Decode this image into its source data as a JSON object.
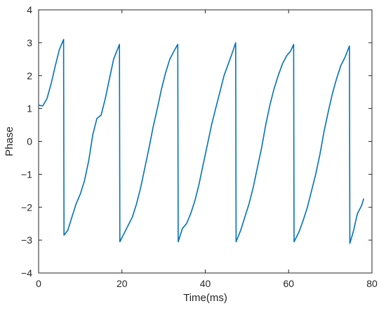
{
  "chart_data": {
    "type": "line",
    "title": "",
    "xlabel": "Time(ms)",
    "ylabel": "Phase",
    "xlim": [
      0,
      80
    ],
    "ylim": [
      -4,
      4
    ],
    "xticks": [
      0,
      20,
      40,
      60,
      80
    ],
    "yticks": [
      -4,
      -3,
      -2,
      -1,
      0,
      1,
      2,
      3,
      4
    ],
    "grid": false,
    "legend": "none",
    "line_color": "#0072BD",
    "axis_color": "#262626",
    "series": [
      {
        "x": [
          0,
          1,
          2,
          3,
          4,
          5,
          6,
          6.1,
          7,
          8,
          9,
          10,
          11,
          12,
          13,
          14,
          15,
          16,
          17,
          18,
          19.4,
          19.5,
          20.5,
          21.5,
          22.5,
          23.5,
          24.5,
          25.5,
          26.5,
          27.5,
          28.5,
          29.5,
          30.5,
          31.5,
          32.5,
          33.4,
          33.5,
          34.5,
          35.5,
          36.5,
          37.5,
          38.5,
          39.5,
          40.5,
          41.5,
          42.5,
          43.5,
          44.5,
          45.5,
          46.5,
          47.3,
          47.4,
          48.5,
          49.5,
          50.5,
          51.5,
          52.5,
          53.5,
          54.5,
          55.5,
          56.5,
          57.5,
          58.5,
          59.5,
          60.5,
          61.2,
          61.3,
          62.5,
          63.5,
          64.5,
          65.5,
          66.5,
          67.5,
          68.5,
          69.5,
          70.5,
          71.5,
          72.5,
          73.5,
          74.6,
          74.7,
          75.5,
          76.5,
          77.5,
          78
        ],
        "y": [
          1.1,
          1.08,
          1.3,
          1.75,
          2.3,
          2.8,
          3.1,
          -2.85,
          -2.7,
          -2.3,
          -1.9,
          -1.6,
          -1.2,
          -0.6,
          0.2,
          0.7,
          0.8,
          1.3,
          1.9,
          2.5,
          2.95,
          -3.05,
          -2.8,
          -2.55,
          -2.3,
          -1.9,
          -1.4,
          -0.8,
          -0.2,
          0.45,
          1.0,
          1.6,
          2.1,
          2.5,
          2.75,
          2.95,
          -3.05,
          -2.65,
          -2.5,
          -2.2,
          -1.8,
          -1.3,
          -0.7,
          -0.1,
          0.5,
          1.0,
          1.5,
          2.0,
          2.35,
          2.7,
          3.0,
          -3.05,
          -2.7,
          -2.3,
          -1.9,
          -1.4,
          -0.8,
          -0.2,
          0.5,
          1.1,
          1.6,
          2.0,
          2.35,
          2.6,
          2.75,
          2.95,
          -3.05,
          -2.75,
          -2.4,
          -2.0,
          -1.5,
          -1.0,
          -0.4,
          0.3,
          0.9,
          1.45,
          1.9,
          2.3,
          2.55,
          2.9,
          -3.1,
          -2.75,
          -2.2,
          -1.95,
          -1.75
        ]
      }
    ]
  }
}
